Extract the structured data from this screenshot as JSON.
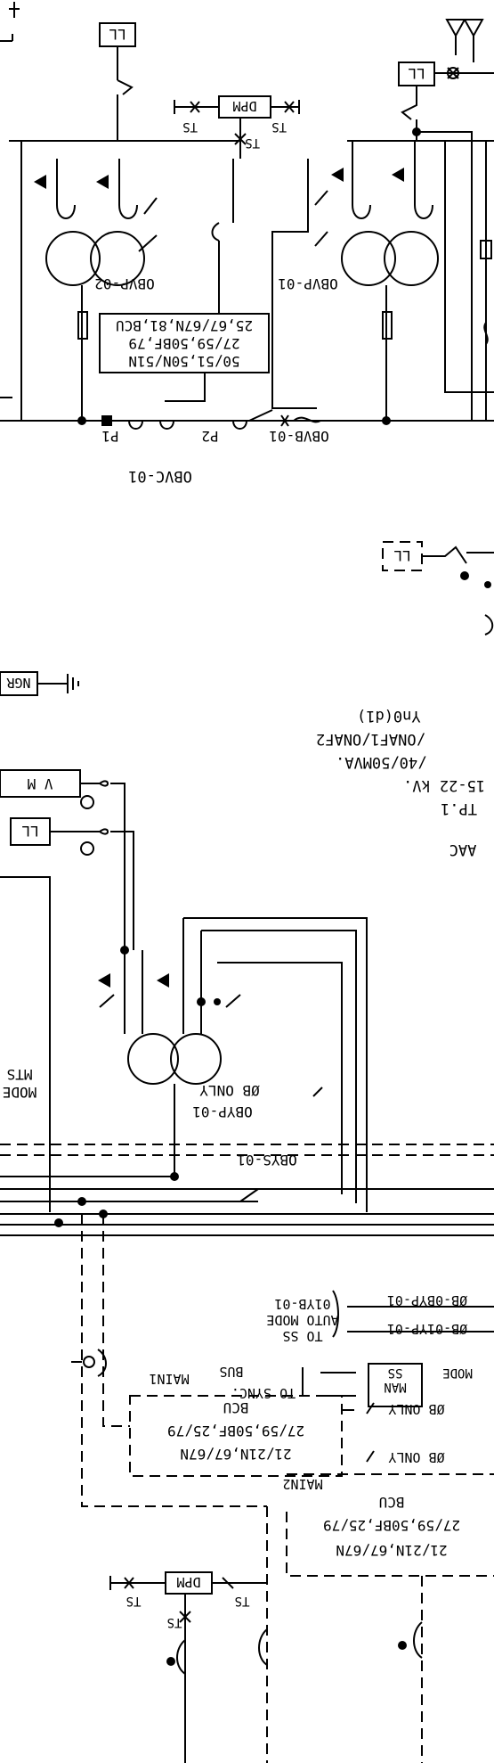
{
  "top": {
    "feeder_name": "OBVC-01",
    "breaker_name": "OBVB-01",
    "ct_p1": "P1",
    "ct_p2": "P2",
    "relay_lines": [
      "50/51,50N/51N",
      "27/59,50BF,79",
      "25,67/67N,81,BCU"
    ],
    "vt_left": "OBVP-02",
    "vt_right": "OBVP-01",
    "ll_label": "LL",
    "dpm_label": "DPM",
    "ts_label": "TS"
  },
  "transformer": {
    "lines": [
      "TP.1",
      "15-22 kV.",
      "/40/50MVA.",
      "/ONAF1/ONAF2",
      "Yn0(d1)"
    ],
    "aac_label": "AAC",
    "ll_label": "LL",
    "ngr_label": "NGR"
  },
  "middle": {
    "v_meter": "V M",
    "ll_label": "LL",
    "mts_line1": "MTS",
    "mts_line2": "MODE",
    "vt_name": "OBYP-01",
    "vt_desc": "ØB ONLY",
    "bus_vt": "OBYS-01"
  },
  "lower": {
    "main1_title": "MAIN1",
    "main1_lines": [
      "21/21N,67/67N",
      "27/59,50BF,25/79",
      "BCU"
    ],
    "main2_title": "MAIN2",
    "main2_lines": [
      "21/21N,67/67N",
      "27/59,50BF,25/79",
      "BCU"
    ],
    "sel1_a": "ØB-01YP-01",
    "sel1_b": "ØB-0BYP-01",
    "sel1_t1": "TO SS",
    "sel1_t2": "AUTO MODE",
    "sel1_t3": "01YB-01",
    "sync_a": "MODE",
    "sync_b": "MAN",
    "sync_c": "SS",
    "sync_t1": "TO SYNC.",
    "sync_t2": "BUS",
    "ob_only_1": "ØB ONLY",
    "ob_only_2": "ØB ONLY",
    "dpm_label": "DPM",
    "ts_label": "TS"
  }
}
